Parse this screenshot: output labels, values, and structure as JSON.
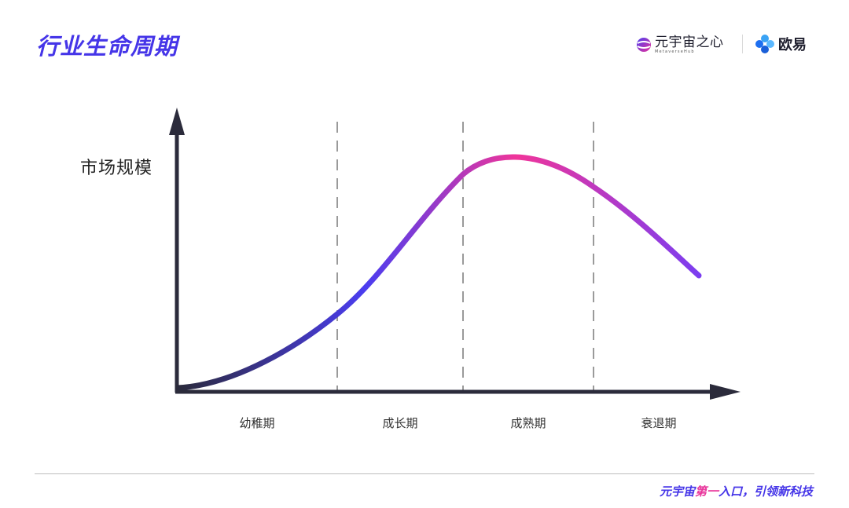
{
  "header": {
    "title": "行业生命周期",
    "brand_metaverse_cn": "元宇宙之心",
    "brand_metaverse_en": "MetaverseHub",
    "brand_okx_cn": "欧易"
  },
  "diagram": {
    "y_axis_label": "市场规模",
    "stages": [
      "幼稚期",
      "成长期",
      "成熟期",
      "衰退期"
    ],
    "curve_gradient_colors": [
      "#2a2a3a",
      "#4b3df0",
      "#f0359a",
      "#7b3df0"
    ]
  },
  "footer": {
    "slogan_prefix": "元宇宙",
    "slogan_highlight": "第一",
    "slogan_suffix": "入口，引领新科技"
  }
}
